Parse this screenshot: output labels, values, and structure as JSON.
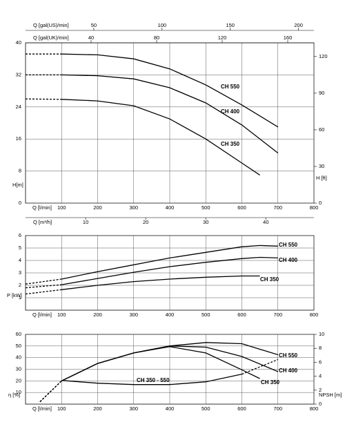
{
  "chart_data": [
    {
      "type": "line",
      "x_label": "Q [l/min]",
      "y_label": "H[m]",
      "y2_label": "H [ft]",
      "xlim": [
        0,
        800
      ],
      "xticks": [
        100,
        200,
        300,
        400,
        500,
        600,
        700,
        800
      ],
      "ylim": [
        0,
        40
      ],
      "yticks": [
        0,
        8,
        16,
        24,
        32,
        40
      ],
      "y2lim": [
        0,
        131.2
      ],
      "y2ticks": [
        0,
        30,
        60,
        90,
        120
      ],
      "top_axes": [
        {
          "label": "Q [gal(US)/min]",
          "lim": [
            0,
            211.3
          ],
          "ticks": [
            50,
            100,
            150,
            200
          ]
        },
        {
          "label": "Q [gal(UK)/min]",
          "lim": [
            0,
            176
          ],
          "ticks": [
            40,
            80,
            120,
            160
          ]
        }
      ],
      "bottom_axis": {
        "label": "Q [m³/h]",
        "lim": [
          0,
          48
        ],
        "ticks": [
          10,
          20,
          30,
          40
        ]
      },
      "grid": true,
      "series": [
        {
          "name": "CH 550",
          "color": "#000000",
          "dashed": "first",
          "x": [
            0,
            100,
            200,
            300,
            400,
            500,
            600,
            700
          ],
          "values": [
            37.2,
            37.2,
            37,
            36,
            33.5,
            29.5,
            24.5,
            19
          ]
        },
        {
          "name": "CH 400",
          "color": "#000000",
          "dashed": "first",
          "x": [
            0,
            100,
            200,
            300,
            400,
            500,
            600,
            700
          ],
          "values": [
            32,
            32,
            31.8,
            31,
            28.8,
            25,
            19.5,
            12.5
          ]
        },
        {
          "name": "CH 350",
          "color": "#000000",
          "dashed": "first",
          "x": [
            0,
            100,
            200,
            300,
            400,
            500,
            600,
            650
          ],
          "values": [
            26,
            25.9,
            25.5,
            24.3,
            21,
            16,
            10,
            7
          ]
        }
      ]
    },
    {
      "type": "line",
      "x_label": "Q [l/min]",
      "y_label": "P [kW]",
      "xlim": [
        0,
        800
      ],
      "xticks": [
        100,
        200,
        300,
        400,
        500,
        600,
        700,
        800
      ],
      "ylim": [
        0,
        6
      ],
      "yticks": [
        1,
        2,
        3,
        4,
        5,
        6
      ],
      "grid": true,
      "series": [
        {
          "name": "CH 550",
          "color": "#000000",
          "dashed": "first",
          "x": [
            0,
            100,
            200,
            300,
            400,
            500,
            600,
            650,
            700
          ],
          "values": [
            2.1,
            2.5,
            3.1,
            3.65,
            4.2,
            4.65,
            5.1,
            5.2,
            5.15
          ]
        },
        {
          "name": "CH 400",
          "color": "#000000",
          "dashed": "first",
          "x": [
            0,
            100,
            200,
            300,
            400,
            500,
            600,
            650,
            700
          ],
          "values": [
            1.8,
            2.05,
            2.55,
            3.05,
            3.5,
            3.85,
            4.15,
            4.25,
            4.2
          ]
        },
        {
          "name": "CH 350",
          "color": "#000000",
          "dashed": "first",
          "x": [
            0,
            100,
            200,
            300,
            400,
            500,
            600,
            650
          ],
          "values": [
            1.3,
            1.65,
            2,
            2.3,
            2.5,
            2.65,
            2.75,
            2.75
          ]
        }
      ]
    },
    {
      "type": "line",
      "x_label": "Q [l/min]",
      "y_label": "η [%]",
      "y2_label": "NPSH [m]",
      "xlim": [
        0,
        800
      ],
      "xticks": [
        100,
        200,
        300,
        400,
        500,
        600,
        700,
        800
      ],
      "ylim": [
        0,
        60
      ],
      "yticks": [
        10,
        20,
        30,
        40,
        50,
        60
      ],
      "y2lim": [
        0,
        10
      ],
      "y2ticks": [
        0,
        2,
        4,
        6,
        8,
        10
      ],
      "grid": true,
      "series": [
        {
          "name": "CH 550",
          "color": "#000000",
          "dashed": "first",
          "x": [
            40,
            100,
            200,
            300,
            400,
            500,
            600,
            700
          ],
          "values": [
            2,
            20,
            35,
            44,
            50,
            53,
            52,
            42.5
          ]
        },
        {
          "name": "CH 400",
          "color": "#000000",
          "dashed": "first",
          "x": [
            40,
            100,
            200,
            300,
            400,
            500,
            600,
            700
          ],
          "values": [
            2,
            20,
            35,
            44,
            50,
            49,
            41,
            28
          ]
        },
        {
          "name": "CH 350",
          "color": "#000000",
          "dashed": "first",
          "x": [
            40,
            100,
            200,
            300,
            400,
            500,
            600,
            650
          ],
          "values": [
            2,
            20,
            35,
            44,
            49.5,
            44,
            29.5,
            22
          ]
        },
        {
          "name": "CH 350 - 550",
          "color": "#000000",
          "dashed": "last",
          "axis": "y2",
          "x": [
            100,
            200,
            300,
            400,
            500,
            600,
            700
          ],
          "values": [
            3.4,
            3,
            2.8,
            2.8,
            3.2,
            4.3,
            6.4
          ]
        }
      ]
    }
  ]
}
